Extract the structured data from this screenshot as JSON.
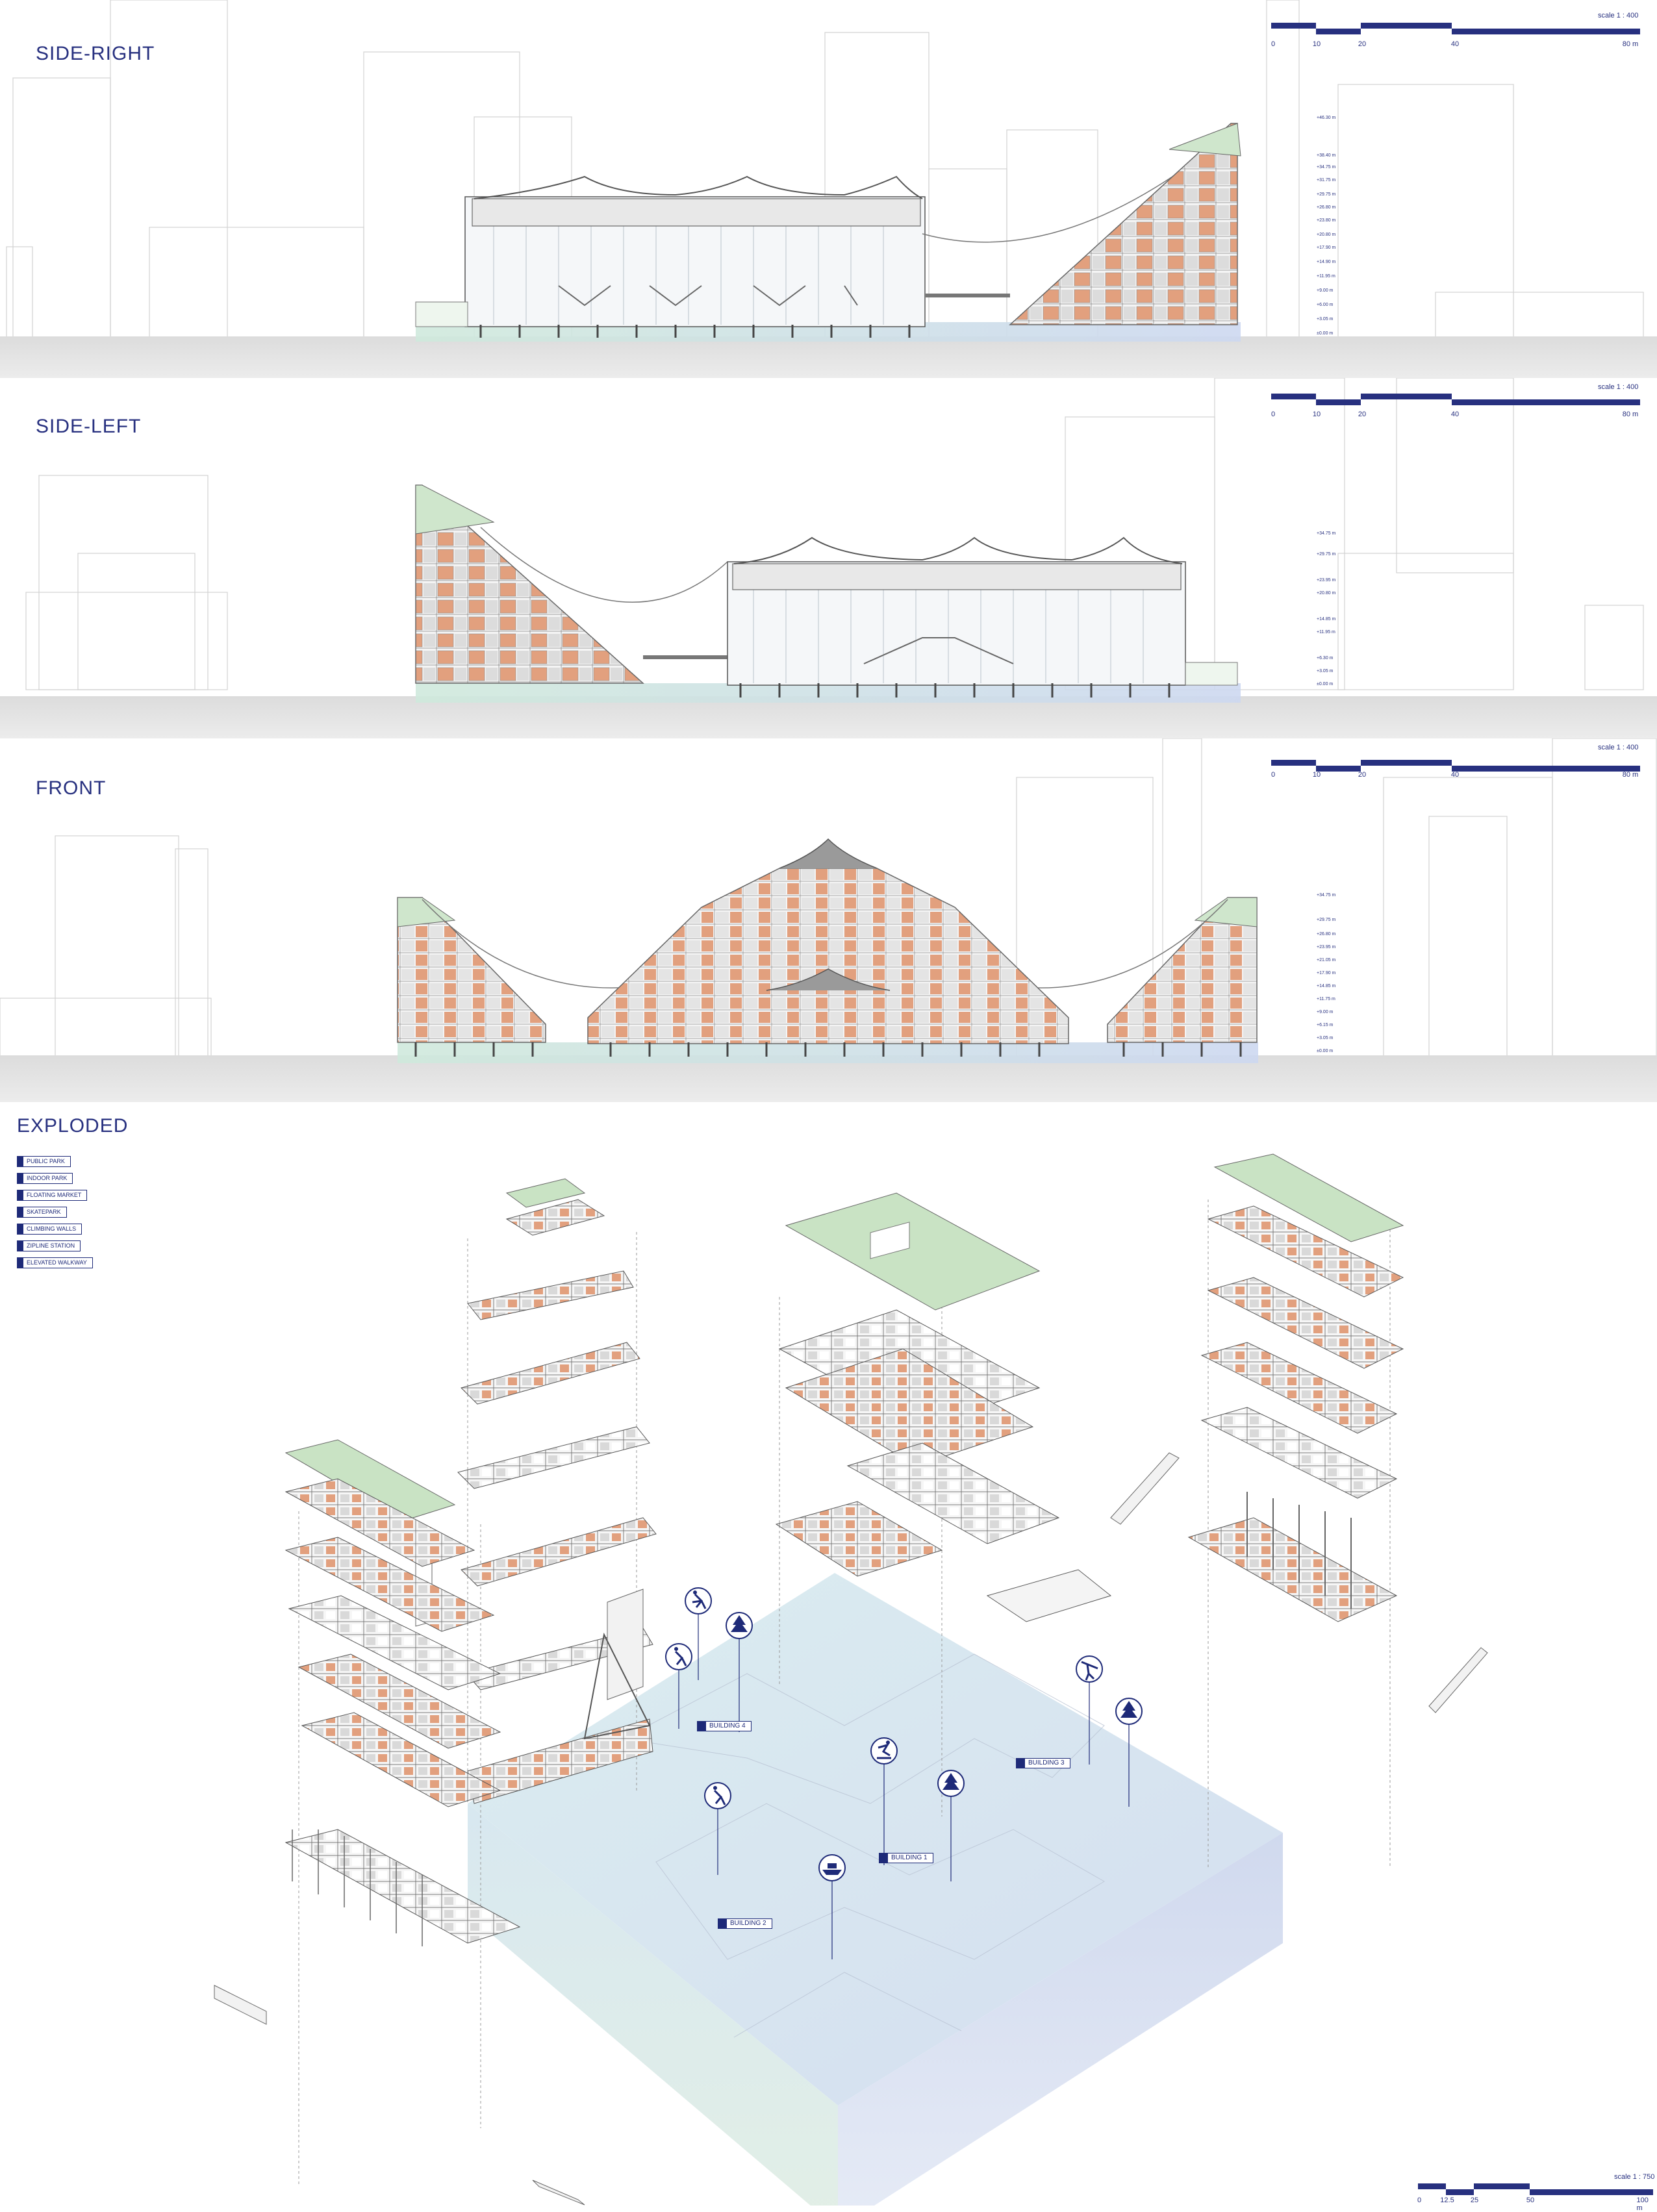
{
  "panels": [
    {
      "title": "SIDE-RIGHT",
      "scale": "scale 1 : 400",
      "ticks": [
        "0",
        "10",
        "20",
        "40",
        "80 m"
      ],
      "elevations": [
        "+46.30 m",
        "+38.40 m",
        "+34.75 m",
        "+31.75 m",
        "+29.75 m",
        "+26.80 m",
        "+23.80 m",
        "+20.80 m",
        "+17.90 m",
        "+14.90 m",
        "+11.95 m",
        "+9.00 m",
        "+6.00 m",
        "+3.05 m",
        "±0.00 m"
      ]
    },
    {
      "title": "SIDE-LEFT",
      "scale": "scale 1 : 400",
      "ticks": [
        "0",
        "10",
        "20",
        "40",
        "80 m"
      ],
      "elevations": [
        "+34.75 m",
        "+29.75 m",
        "+23.95 m",
        "+20.80 m",
        "+14.85 m",
        "+11.95 m",
        "+6.30 m",
        "+3.05 m",
        "±0.00 m"
      ]
    },
    {
      "title": "FRONT",
      "scale": "scale 1 : 400",
      "ticks": [
        "0",
        "10",
        "20",
        "40",
        "80 m"
      ],
      "elevations": [
        "+34.75 m",
        "+29.75 m",
        "+26.80 m",
        "+23.95 m",
        "+21.05 m",
        "+17.90 m",
        "+14.85 m",
        "+11.75 m",
        "+9.00 m",
        "+6.15 m",
        "+3.05 m",
        "±0.00 m"
      ]
    }
  ],
  "exploded": {
    "title": "EXPLODED",
    "legend": [
      "PUBLIC PARK",
      "INDOOR PARK",
      "FLOATING MARKET",
      "SKATEPARK",
      "CLIMBING WALLS",
      "ZIPLINE STATION",
      "ELEVATED WALKWAY"
    ],
    "buildings": [
      "BUILDING 4",
      "BUILDING 3",
      "BUILDING 1",
      "BUILDING 2"
    ],
    "scale": "scale 1 : 750",
    "ticks": [
      "0",
      "12.5",
      "25",
      "50",
      "100 m"
    ]
  },
  "colors": {
    "accent": "#1e2a78",
    "terracotta": "#e2a07e",
    "green": "#c9e3c4",
    "water": "#d6e2f0",
    "ground": "#e7e7e7"
  },
  "icons": [
    "climbing-icon",
    "tree-icon",
    "zipline-icon",
    "skater-icon",
    "boat-icon"
  ]
}
